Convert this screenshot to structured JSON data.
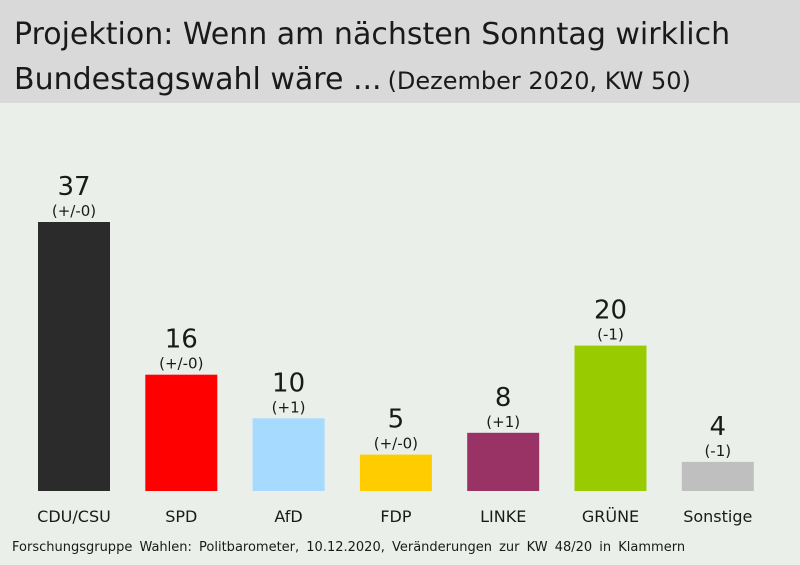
{
  "header": {
    "title_line1": "Projektion: Wenn am nächsten Sonntag wirklich",
    "title_line2": "Bundestagswahl wäre ...",
    "subtitle": "(Dezember 2020, KW 50)"
  },
  "footer": {
    "source": "Forschungsgruppe Wahlen: Politbarometer, 10.12.2020, Veränderungen zur KW 48/20 in Klammern"
  },
  "chart_data": {
    "type": "bar",
    "title": "Projektion: Wenn am nächsten Sonntag wirklich Bundestagswahl wäre ...",
    "subtitle": "(Dezember 2020, KW 50)",
    "categories": [
      "CDU/CSU",
      "SPD",
      "AfD",
      "FDP",
      "LINKE",
      "GRÜNE",
      "Sonstige"
    ],
    "values": [
      37,
      16,
      10,
      5,
      8,
      20,
      4
    ],
    "changes": [
      "(+/-0)",
      "(+/-0)",
      "(+1)",
      "(+/-0)",
      "(+1)",
      "(-1)",
      "(-1)"
    ],
    "colors": [
      "#2b2b2b",
      "#ff0000",
      "#a6dbff",
      "#ffcc00",
      "#993366",
      "#99cc00",
      "#bfbfbf"
    ],
    "ylim": [
      0,
      37
    ],
    "grid": false,
    "legend": "none"
  }
}
